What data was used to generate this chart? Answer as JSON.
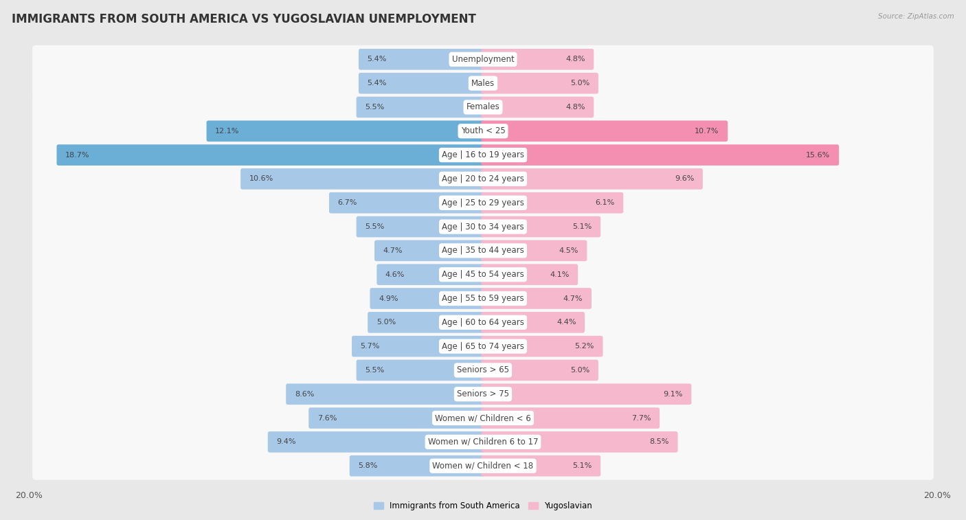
{
  "title": "IMMIGRANTS FROM SOUTH AMERICA VS YUGOSLAVIAN UNEMPLOYMENT",
  "source": "Source: ZipAtlas.com",
  "categories": [
    "Unemployment",
    "Males",
    "Females",
    "Youth < 25",
    "Age | 16 to 19 years",
    "Age | 20 to 24 years",
    "Age | 25 to 29 years",
    "Age | 30 to 34 years",
    "Age | 35 to 44 years",
    "Age | 45 to 54 years",
    "Age | 55 to 59 years",
    "Age | 60 to 64 years",
    "Age | 65 to 74 years",
    "Seniors > 65",
    "Seniors > 75",
    "Women w/ Children < 6",
    "Women w/ Children 6 to 17",
    "Women w/ Children < 18"
  ],
  "left_values": [
    5.4,
    5.4,
    5.5,
    12.1,
    18.7,
    10.6,
    6.7,
    5.5,
    4.7,
    4.6,
    4.9,
    5.0,
    5.7,
    5.5,
    8.6,
    7.6,
    9.4,
    5.8
  ],
  "right_values": [
    4.8,
    5.0,
    4.8,
    10.7,
    15.6,
    9.6,
    6.1,
    5.1,
    4.5,
    4.1,
    4.7,
    4.4,
    5.2,
    5.0,
    9.1,
    7.7,
    8.5,
    5.1
  ],
  "left_color": "#a8c8e8",
  "right_color": "#f5b8cc",
  "left_label": "Immigrants from South America",
  "right_label": "Yugoslavian",
  "xlim": 20.0,
  "background_color": "#e8e8e8",
  "bar_background": "#f8f8f8",
  "title_fontsize": 12,
  "label_fontsize": 8.5,
  "value_fontsize": 8,
  "axis_fontsize": 9,
  "bar_height": 0.72,
  "highlight_rows": [
    3,
    4
  ],
  "highlight_left_color": "#6baed6",
  "highlight_right_color": "#f48fb1"
}
